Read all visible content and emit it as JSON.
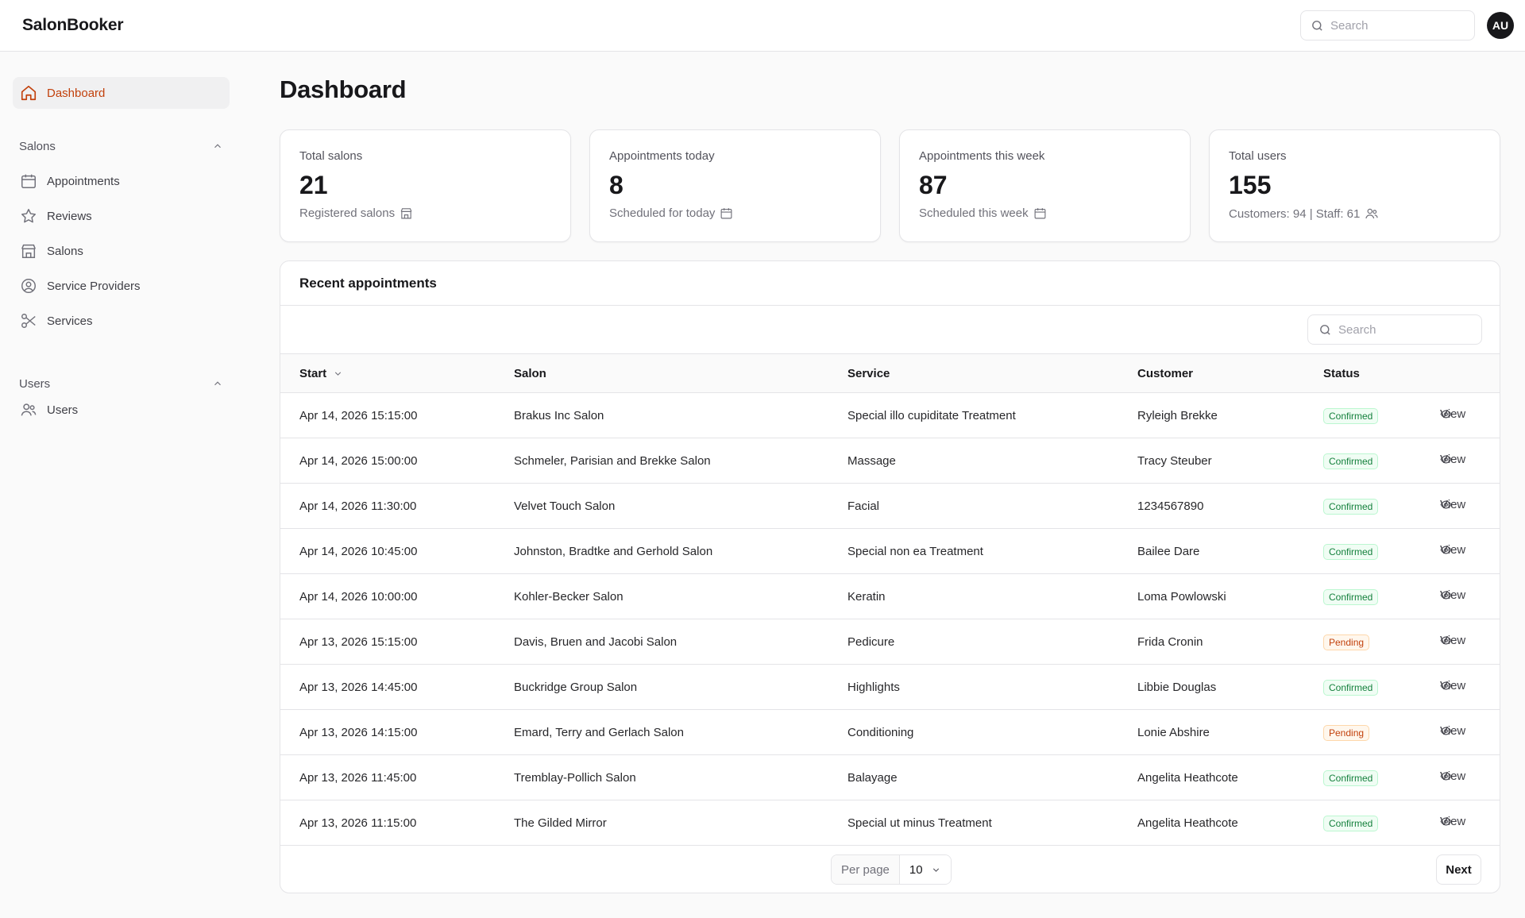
{
  "app": {
    "brand": "SalonBooker"
  },
  "header": {
    "search_placeholder": "Search",
    "avatar_initials": "AU"
  },
  "sidebar": {
    "dashboard": "Dashboard",
    "groups": [
      {
        "label": "Salons",
        "items": [
          "Appointments",
          "Reviews",
          "Salons",
          "Service Providers",
          "Services"
        ]
      },
      {
        "label": "Users",
        "items": [
          "Users"
        ]
      }
    ]
  },
  "page": {
    "title": "Dashboard"
  },
  "stats": [
    {
      "label": "Total salons",
      "value": "21",
      "desc": "Registered salons",
      "icon": "store-icon"
    },
    {
      "label": "Appointments today",
      "value": "8",
      "desc": "Scheduled for today",
      "icon": "calendar-icon"
    },
    {
      "label": "Appointments this week",
      "value": "87",
      "desc": "Scheduled this week",
      "icon": "calendar-icon"
    },
    {
      "label": "Total users",
      "value": "155",
      "desc": "Customers: 94 | Staff: 61",
      "icon": "users-icon"
    }
  ],
  "appointments": {
    "title": "Recent appointments",
    "search_placeholder": "Search",
    "columns": {
      "start": "Start",
      "salon": "Salon",
      "service": "Service",
      "customer": "Customer",
      "status": "Status"
    },
    "view_label": "View",
    "rows": [
      {
        "start": "Apr 14, 2026 15:15:00",
        "salon": "Brakus Inc Salon",
        "service": "Special illo cupiditate Treatment",
        "customer": "Ryleigh Brekke",
        "status": "Confirmed"
      },
      {
        "start": "Apr 14, 2026 15:00:00",
        "salon": "Schmeler, Parisian and Brekke Salon",
        "service": "Massage",
        "customer": "Tracy Steuber",
        "status": "Confirmed"
      },
      {
        "start": "Apr 14, 2026 11:30:00",
        "salon": "Velvet Touch Salon",
        "service": "Facial",
        "customer": "1234567890",
        "status": "Confirmed"
      },
      {
        "start": "Apr 14, 2026 10:45:00",
        "salon": "Johnston, Bradtke and Gerhold Salon",
        "service": "Special non ea Treatment",
        "customer": "Bailee Dare",
        "status": "Confirmed"
      },
      {
        "start": "Apr 14, 2026 10:00:00",
        "salon": "Kohler-Becker Salon",
        "service": "Keratin",
        "customer": "Loma Powlowski",
        "status": "Confirmed"
      },
      {
        "start": "Apr 13, 2026 15:15:00",
        "salon": "Davis, Bruen and Jacobi Salon",
        "service": "Pedicure",
        "customer": "Frida Cronin",
        "status": "Pending"
      },
      {
        "start": "Apr 13, 2026 14:45:00",
        "salon": "Buckridge Group Salon",
        "service": "Highlights",
        "customer": "Libbie Douglas",
        "status": "Confirmed"
      },
      {
        "start": "Apr 13, 2026 14:15:00",
        "salon": "Emard, Terry and Gerlach Salon",
        "service": "Conditioning",
        "customer": "Lonie Abshire",
        "status": "Pending"
      },
      {
        "start": "Apr 13, 2026 11:45:00",
        "salon": "Tremblay-Pollich Salon",
        "service": "Balayage",
        "customer": "Angelita Heathcote",
        "status": "Confirmed"
      },
      {
        "start": "Apr 13, 2026 11:15:00",
        "salon": "The Gilded Mirror",
        "service": "Special ut minus Treatment",
        "customer": "Angelita Heathcote",
        "status": "Confirmed"
      }
    ]
  },
  "pagination": {
    "per_page_label": "Per page",
    "per_page_value": "10",
    "next_label": "Next"
  }
}
